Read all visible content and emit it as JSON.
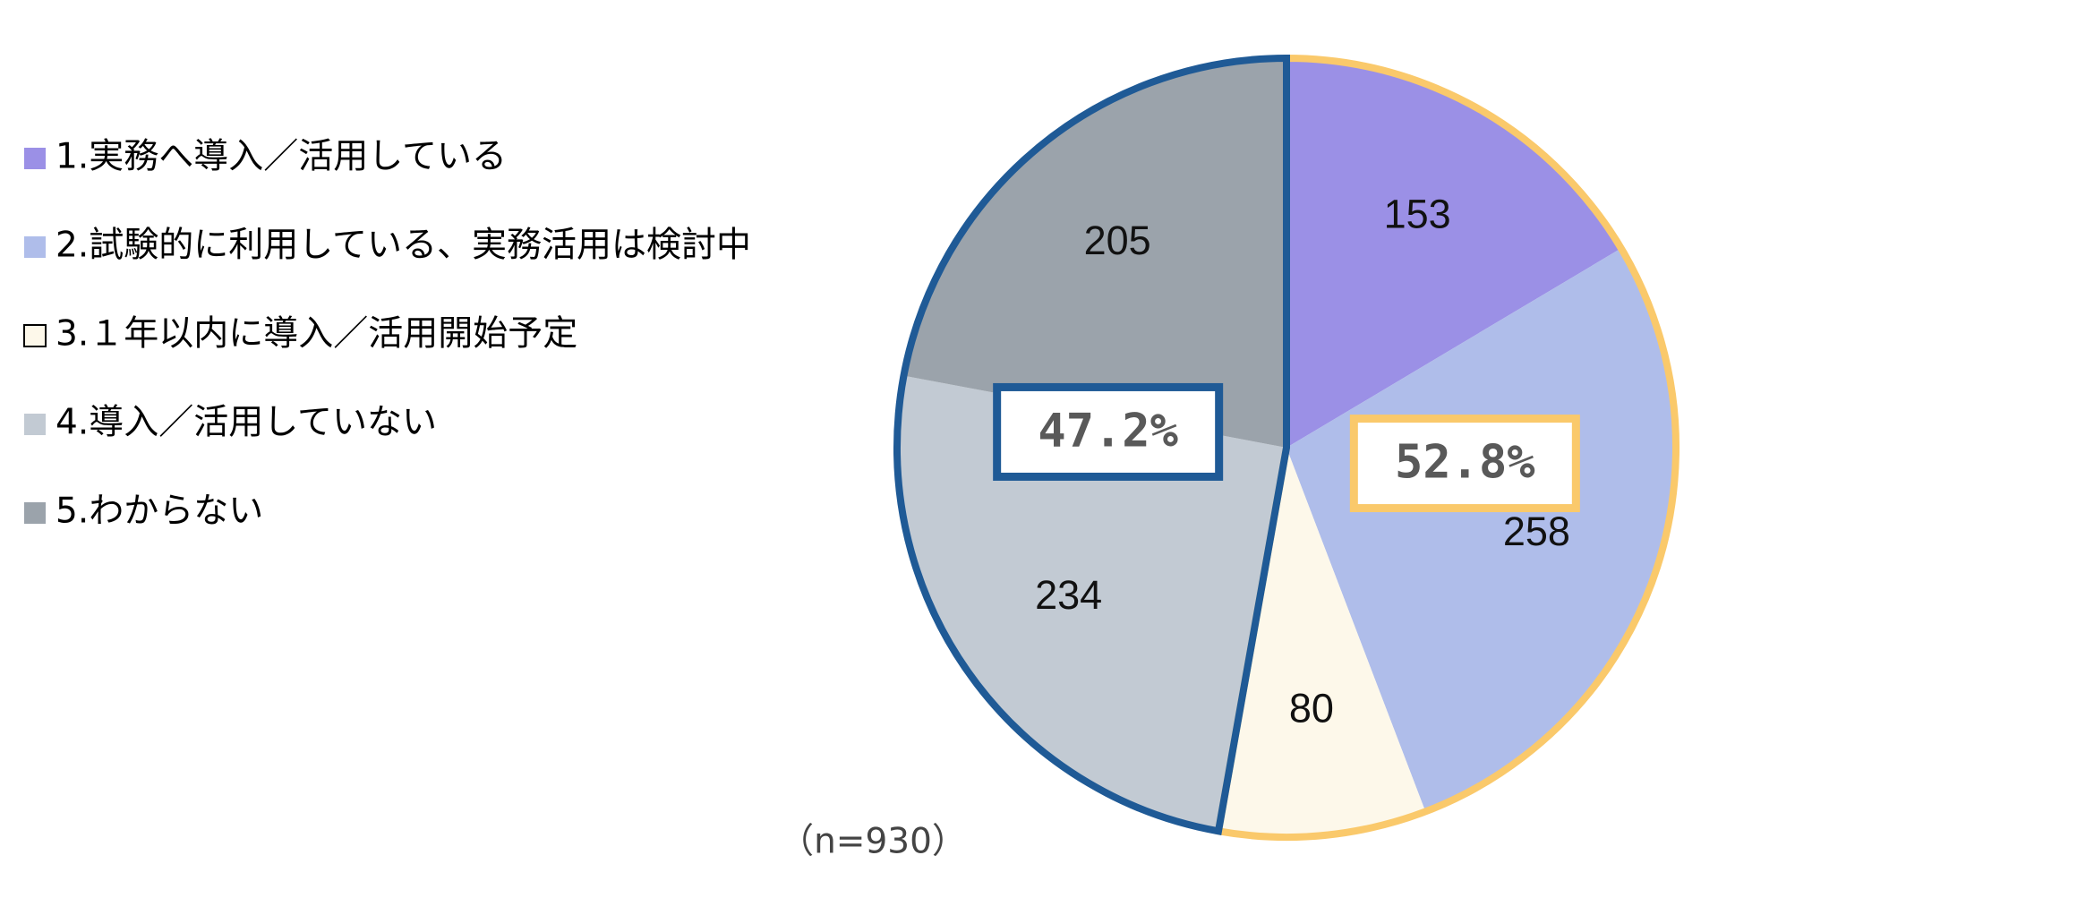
{
  "chart_data": {
    "type": "pie",
    "categories": [
      "1.実務へ導入／活用している",
      "2.試験的に利用している、実務活用は検討中",
      "3.１年以内に導入／活用開始予定",
      "4.導入／活用していない",
      "5.わからない"
    ],
    "values": [
      153,
      258,
      80,
      234,
      205
    ],
    "colors": [
      "#9b90e6",
      "#afbdea",
      "#fdf8ea",
      "#c2cad3",
      "#9ba3ab"
    ],
    "groups": [
      {
        "label": "52.8%",
        "members": [
          0,
          1,
          2
        ],
        "color": "#fac96b"
      },
      {
        "label": "47.2%",
        "members": [
          3,
          4
        ],
        "color": "#1f5a96"
      }
    ],
    "note": "（n=930）",
    "legend": "left"
  }
}
